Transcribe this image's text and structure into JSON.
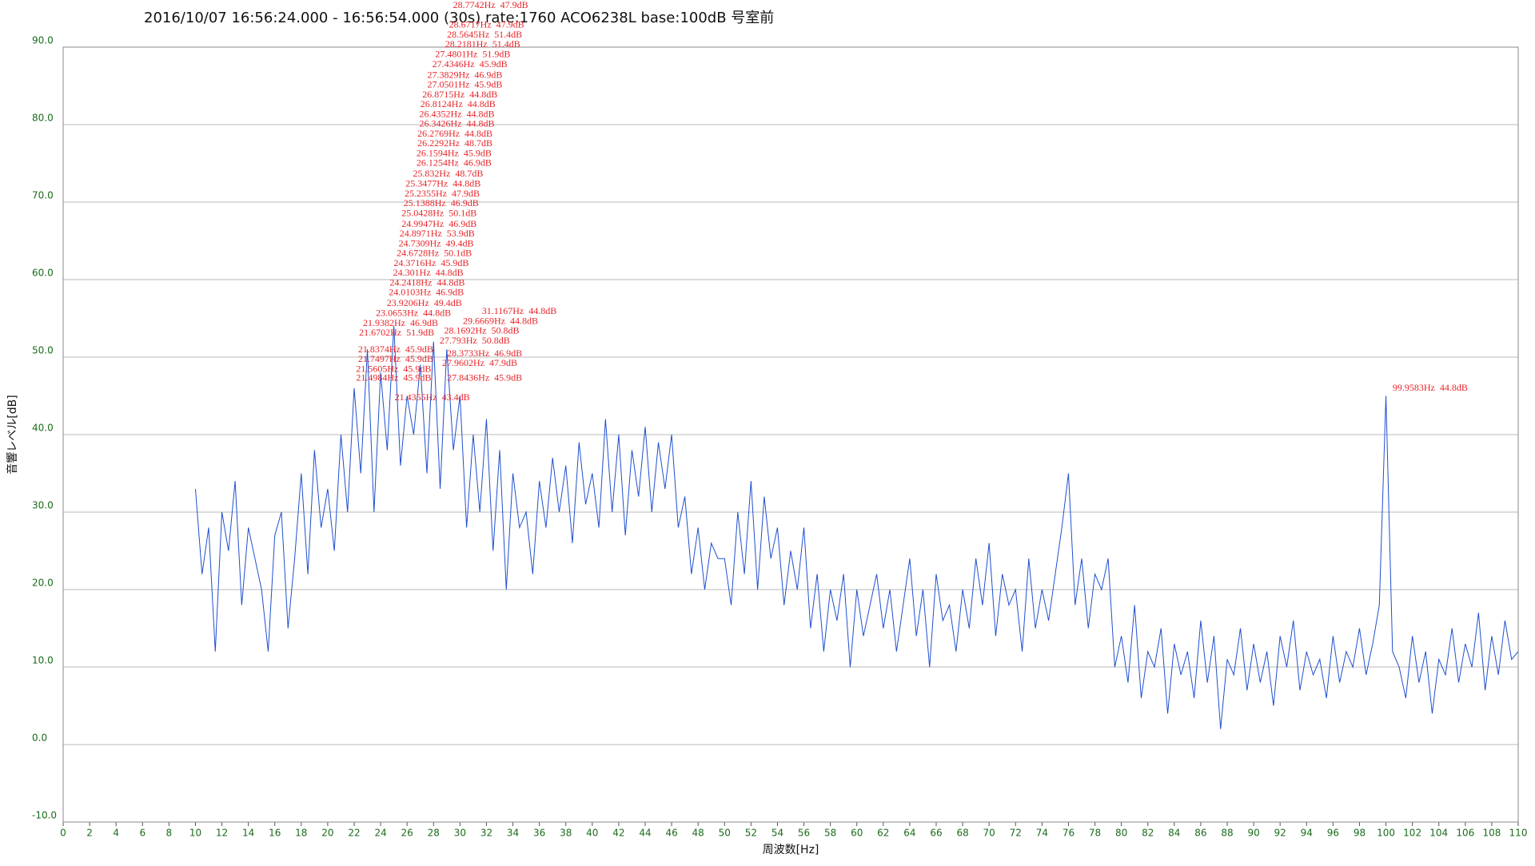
{
  "chart_data": {
    "type": "line",
    "title": "2016/10/07 16:56:24.000 - 16:56:54.000 (30s) rate:1760 ACO6238L base:100dB 号室前",
    "xlabel": "周波数[Hz]",
    "ylabel": "音響レベル[dB]",
    "color": "#1f4fd0",
    "grid": true,
    "xlim": [
      0,
      110
    ],
    "ylim": [
      -10,
      90
    ],
    "xticks": [
      0,
      2,
      4,
      6,
      8,
      10,
      12,
      14,
      16,
      18,
      20,
      22,
      24,
      26,
      28,
      30,
      32,
      34,
      36,
      38,
      40,
      42,
      44,
      46,
      48,
      50,
      52,
      54,
      56,
      58,
      60,
      62,
      64,
      66,
      68,
      70,
      72,
      74,
      76,
      78,
      80,
      82,
      84,
      86,
      88,
      90,
      92,
      94,
      96,
      98,
      100,
      102,
      104,
      106,
      108,
      110
    ],
    "yticks": [
      {
        "value": -10,
        "label": "-10.0"
      },
      {
        "value": 0,
        "label": "0.0"
      },
      {
        "value": 10,
        "label": "10.0"
      },
      {
        "value": 20,
        "label": "20.0"
      },
      {
        "value": 30,
        "label": "30.0"
      },
      {
        "value": 40,
        "label": "40.0"
      },
      {
        "value": 50,
        "label": "50.0"
      },
      {
        "value": 60,
        "label": "60.0"
      },
      {
        "value": 70,
        "label": "70.0"
      },
      {
        "value": 80,
        "label": "80.0"
      },
      {
        "value": 90,
        "label": "90.0"
      }
    ],
    "x": [
      10,
      10.5,
      11,
      11.5,
      12,
      12.5,
      13,
      13.5,
      14,
      14.5,
      15,
      15.5,
      16,
      16.5,
      17,
      17.5,
      18,
      18.5,
      19,
      19.5,
      20,
      20.5,
      21,
      21.5,
      22,
      22.5,
      23,
      23.5,
      24,
      24.5,
      25,
      25.5,
      26,
      26.5,
      27,
      27.5,
      28,
      28.5,
      29,
      29.5,
      30,
      30.5,
      31,
      31.5,
      32,
      32.5,
      33,
      33.5,
      34,
      34.5,
      35,
      35.5,
      36,
      36.5,
      37,
      37.5,
      38,
      38.5,
      39,
      39.5,
      40,
      40.5,
      41,
      41.5,
      42,
      42.5,
      43,
      43.5,
      44,
      44.5,
      45,
      45.5,
      46,
      46.5,
      47,
      47.5,
      48,
      48.5,
      49,
      49.5,
      50,
      50.5,
      51,
      51.5,
      52,
      52.5,
      53,
      53.5,
      54,
      54.5,
      55,
      55.5,
      56,
      56.5,
      57,
      57.5,
      58,
      58.5,
      59,
      59.5,
      60,
      60.5,
      61,
      61.5,
      62,
      62.5,
      63,
      63.5,
      64,
      64.5,
      65,
      65.5,
      66,
      66.5,
      67,
      67.5,
      68,
      68.5,
      69,
      69.5,
      70,
      70.5,
      71,
      71.5,
      72,
      72.5,
      73,
      73.5,
      74,
      74.5,
      75,
      75.5,
      76,
      76.5,
      77,
      77.5,
      78,
      78.5,
      79,
      79.5,
      80,
      80.5,
      81,
      81.5,
      82,
      82.5,
      83,
      83.5,
      84,
      84.5,
      85,
      85.5,
      86,
      86.5,
      87,
      87.5,
      88,
      88.5,
      89,
      89.5,
      90,
      90.5,
      91,
      91.5,
      92,
      92.5,
      93,
      93.5,
      94,
      94.5,
      95,
      95.5,
      96,
      96.5,
      97,
      97.5,
      98,
      98.5,
      99,
      99.5,
      100,
      100.5,
      101,
      101.5,
      102,
      102.5,
      103,
      103.5,
      104,
      104.5,
      105,
      105.5,
      106,
      106.5,
      107,
      107.5,
      108,
      108.5,
      109,
      109.5,
      110
    ],
    "values": [
      33,
      22,
      28,
      12,
      30,
      25,
      34,
      18,
      28,
      24,
      20,
      12,
      27,
      30,
      15,
      24,
      35,
      22,
      38,
      28,
      33,
      25,
      40,
      30,
      46,
      35,
      51,
      30,
      48,
      38,
      54,
      36,
      45,
      40,
      49,
      35,
      52,
      33,
      51,
      38,
      45,
      28,
      40,
      30,
      42,
      25,
      38,
      20,
      35,
      28,
      30,
      22,
      34,
      28,
      37,
      30,
      36,
      26,
      39,
      31,
      35,
      28,
      42,
      30,
      40,
      27,
      38,
      32,
      41,
      30,
      39,
      33,
      40,
      28,
      32,
      22,
      28,
      20,
      26,
      24,
      24,
      18,
      30,
      22,
      34,
      20,
      32,
      24,
      28,
      18,
      25,
      20,
      28,
      15,
      22,
      12,
      20,
      16,
      22,
      10,
      20,
      14,
      18,
      22,
      15,
      20,
      12,
      18,
      24,
      14,
      20,
      10,
      22,
      16,
      18,
      12,
      20,
      15,
      24,
      18,
      26,
      14,
      22,
      18,
      20,
      12,
      24,
      15,
      20,
      16,
      22,
      28,
      35,
      18,
      24,
      15,
      22,
      20,
      24,
      10,
      14,
      8,
      18,
      6,
      12,
      10,
      15,
      4,
      13,
      9,
      12,
      6,
      16,
      8,
      14,
      2,
      11,
      9,
      15,
      7,
      13,
      8,
      12,
      5,
      14,
      10,
      16,
      7,
      12,
      9,
      11,
      6,
      14,
      8,
      12,
      10,
      15,
      9,
      13,
      18,
      45,
      12,
      10,
      6,
      14,
      8,
      12,
      4,
      11,
      9,
      15,
      8,
      13,
      10,
      17,
      7,
      14,
      9,
      16,
      11,
      12
    ],
    "annotations": [
      "28.7742Hz  47.9dB",
      "28.6717Hz  47.9dB",
      "28.5645Hz  51.4dB",
      "28.2181Hz  51.4dB",
      "27.4801Hz  51.9dB",
      "27.4346Hz  45.9dB",
      "27.3829Hz  46.9dB",
      "27.0501Hz  45.9dB",
      "26.8715Hz  44.8dB",
      "26.8124Hz  44.8dB",
      "26.4352Hz  44.8dB",
      "26.3426Hz  44.8dB",
      "26.2769Hz  44.8dB",
      "26.2292Hz  48.7dB",
      "26.1594Hz  45.9dB",
      "26.1254Hz  46.9dB",
      "25.832Hz  48.7dB",
      "25.3477Hz  44.8dB",
      "25.2355Hz  47.9dB",
      "25.1388Hz  46.9dB",
      "25.0428Hz  50.1dB",
      "24.9947Hz  46.9dB",
      "24.8971Hz  53.9dB",
      "24.7309Hz  49.4dB",
      "24.6728Hz  50.1dB",
      "24.3716Hz  45.9dB",
      "24.301Hz  44.8dB",
      "24.2418Hz  44.8dB",
      "24.0103Hz  46.9dB",
      "23.9206Hz  49.4dB",
      "23.0653Hz  44.8dB",
      "21.9382Hz  46.9dB",
      "21.6702Hz  51.9dB",
      "21.8374Hz  45.9dB",
      "21.7497Hz  45.9dB",
      "21.5605Hz  45.9dB",
      "21.4984Hz  45.9dB",
      "21.4355Hz  43.4dB",
      "31.1167Hz  44.8dB",
      "29.6669Hz  44.8dB",
      "28.1692Hz  50.8dB",
      "27.793Hz  50.8dB",
      "28.3733Hz  46.9dB",
      "27.9602Hz  47.9dB",
      "27.8436Hz  45.9dB",
      "99.9583Hz  44.8dB"
    ]
  }
}
